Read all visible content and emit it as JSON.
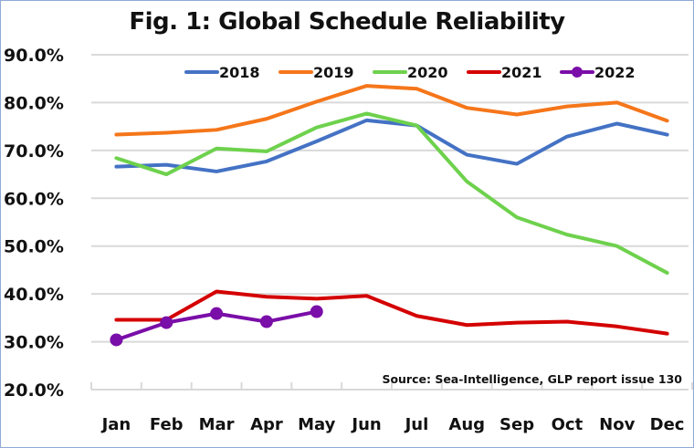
{
  "chart_data": {
    "type": "line",
    "title": "Fig. 1: Global Schedule Reliability",
    "xlabel": "",
    "ylabel": "",
    "categories": [
      "Jan",
      "Feb",
      "Mar",
      "Apr",
      "May",
      "Jun",
      "Jul",
      "Aug",
      "Sep",
      "Oct",
      "Nov",
      "Dec"
    ],
    "yticks": [
      "20.0%",
      "30.0%",
      "40.0%",
      "50.0%",
      "60.0%",
      "70.0%",
      "80.0%",
      "90.0%"
    ],
    "ylim": [
      20,
      90
    ],
    "grid": true,
    "legend_position": "top",
    "series": [
      {
        "name": "2018",
        "color": "#4472c4",
        "marker": false,
        "values": [
          66.6,
          67.0,
          65.6,
          67.7,
          71.9,
          76.3,
          75.2,
          69.1,
          67.2,
          72.9,
          75.6,
          73.3
        ]
      },
      {
        "name": "2019",
        "color": "#f5761a",
        "marker": false,
        "values": [
          73.3,
          73.7,
          74.3,
          76.6,
          80.2,
          83.5,
          82.9,
          78.9,
          77.5,
          79.2,
          80.0,
          76.2
        ]
      },
      {
        "name": "2020",
        "color": "#6ed14d",
        "marker": false,
        "values": [
          68.4,
          65.0,
          70.4,
          69.8,
          74.8,
          77.7,
          75.2,
          63.5,
          56.0,
          52.4,
          50.0,
          44.4
        ]
      },
      {
        "name": "2021",
        "color": "#d40000",
        "marker": false,
        "values": [
          34.6,
          34.6,
          40.5,
          39.4,
          39.0,
          39.6,
          35.4,
          33.5,
          34.0,
          34.2,
          33.2,
          31.7
        ]
      },
      {
        "name": "2022",
        "color": "#7a0ea8",
        "marker": true,
        "values": [
          30.4,
          34.0,
          35.9,
          34.2,
          36.3
        ]
      }
    ],
    "annotation": "Source: Sea-Intelligence, GLP report issue 130"
  }
}
